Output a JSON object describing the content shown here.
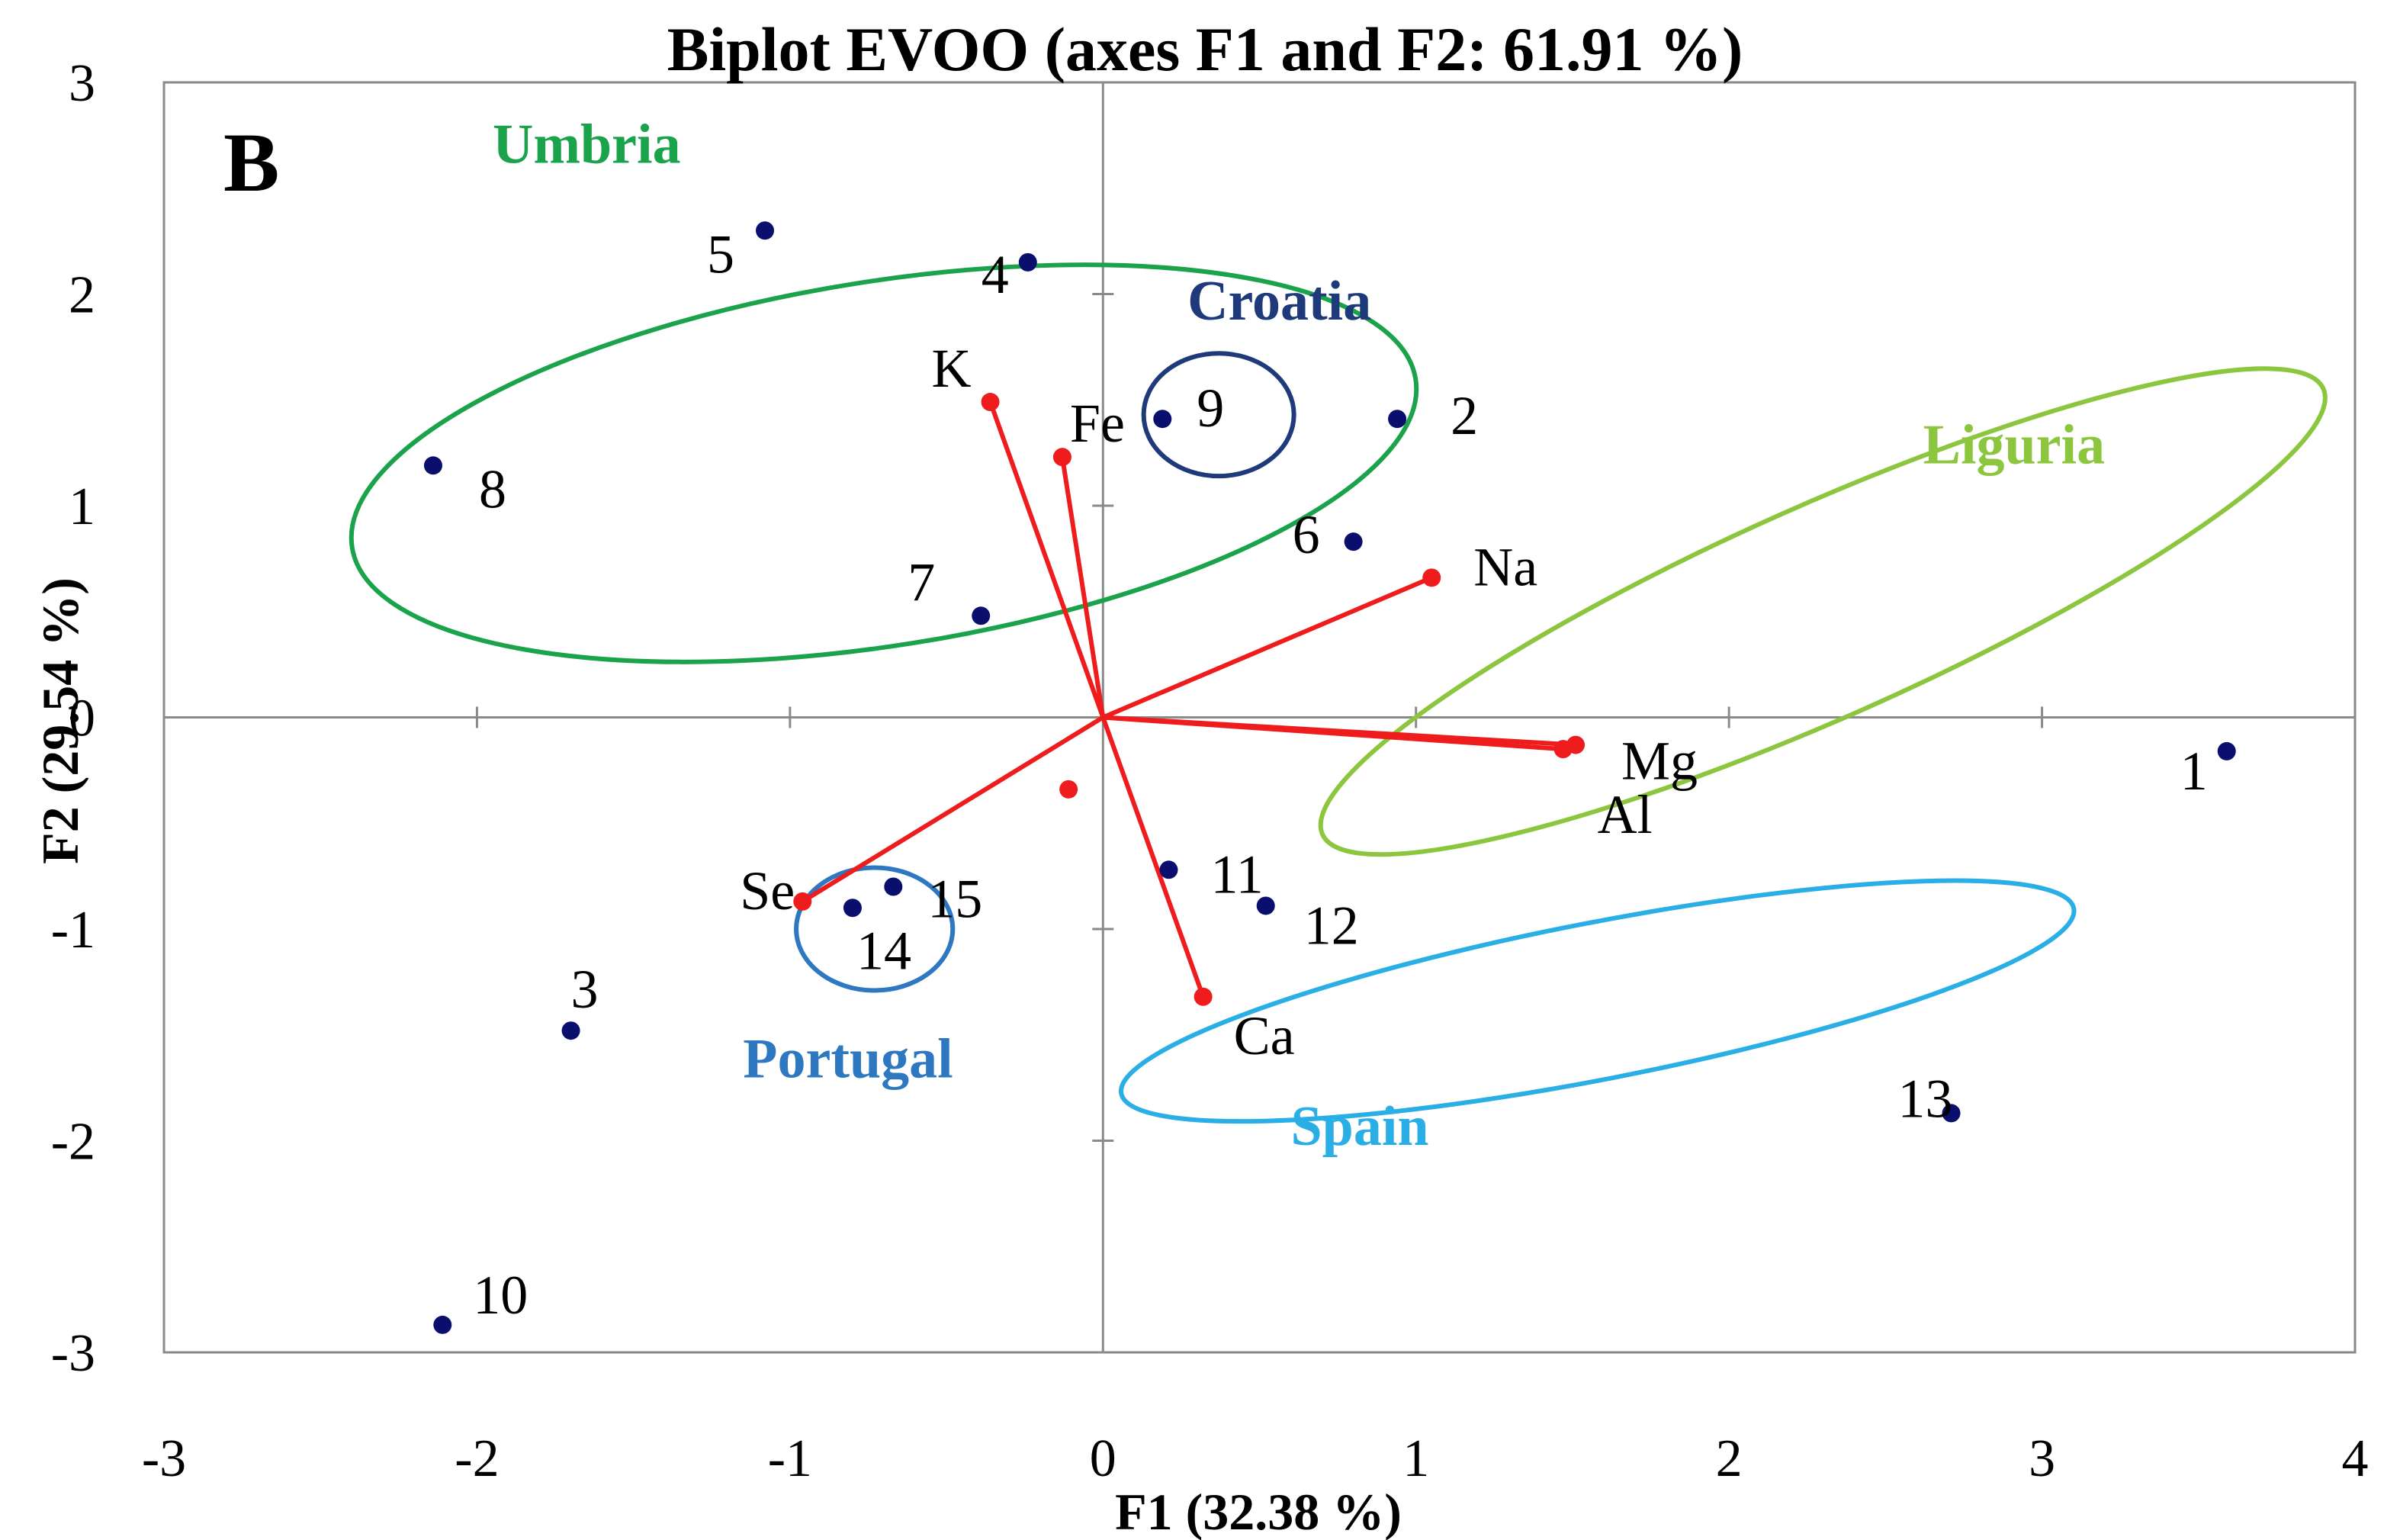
{
  "chart_data": {
    "type": "scatter",
    "title": "Biplot EVOO (axes F1 and F2: 61.91 %)",
    "panel_label": "B",
    "xlabel": "F1 (32.38 %)",
    "ylabel": "F2 (29.54 %)",
    "xlim": [
      -3,
      4
    ],
    "ylim": [
      -3,
      3
    ],
    "xticks": [
      "-3",
      "-2",
      "-1",
      "0",
      "1",
      "2",
      "3",
      "4"
    ],
    "yticks": [
      "3",
      "2",
      "1",
      "0",
      "-1",
      "-2",
      "-3"
    ],
    "observations": [
      {
        "label": "1",
        "x": 3.59,
        "y": -0.16
      },
      {
        "label": "2",
        "x": 0.94,
        "y": 1.41
      },
      {
        "label": "3",
        "x": -1.7,
        "y": -1.48
      },
      {
        "label": "4",
        "x": -0.24,
        "y": 2.15
      },
      {
        "label": "5",
        "x": -1.08,
        "y": 2.3
      },
      {
        "label": "6",
        "x": 0.8,
        "y": 0.83
      },
      {
        "label": "7",
        "x": -0.39,
        "y": 0.48
      },
      {
        "label": "8",
        "x": -2.14,
        "y": 1.19
      },
      {
        "label": "9",
        "x": 0.19,
        "y": 1.41
      },
      {
        "label": "10",
        "x": -2.11,
        "y": -2.87
      },
      {
        "label": "11",
        "x": 0.21,
        "y": -0.72
      },
      {
        "label": "12",
        "x": 0.52,
        "y": -0.89
      },
      {
        "label": "13",
        "x": 2.71,
        "y": -1.87
      },
      {
        "label": "14",
        "x": -0.8,
        "y": -0.9
      },
      {
        "label": "15",
        "x": -0.67,
        "y": -0.8
      }
    ],
    "variables": [
      {
        "label": "K",
        "x": -0.36,
        "y": 1.49
      },
      {
        "label": "Fe",
        "x": -0.13,
        "y": 1.23
      },
      {
        "label": "Na",
        "x": 1.05,
        "y": 0.66
      },
      {
        "label": "Mg",
        "x": 1.51,
        "y": -0.13
      },
      {
        "label": "Al",
        "x": 1.47,
        "y": -0.15
      },
      {
        "label": "Se",
        "x": -0.96,
        "y": -0.87
      },
      {
        "label": "Ca",
        "x": 0.32,
        "y": -1.32
      },
      {
        "label": "",
        "x": -0.11,
        "y": -0.34
      }
    ],
    "groups": [
      {
        "name": "Umbria",
        "color": "#1aa34a",
        "members": [
          "4",
          "5",
          "6",
          "7",
          "8"
        ]
      },
      {
        "name": "Croatia",
        "color": "#1f3a7a",
        "members": [
          "9"
        ]
      },
      {
        "name": "Liguria",
        "color": "#8cc63f",
        "members": [
          "1",
          "2"
        ]
      },
      {
        "name": "Portugal",
        "color": "#2e78c2",
        "members": [
          "14",
          "15"
        ]
      },
      {
        "name": "Spain",
        "color": "#29aee6",
        "members": [
          "11",
          "12",
          "13"
        ]
      }
    ],
    "colors": {
      "observation": "#0a0f6e",
      "variable": "#ee1c1c",
      "axis": "#8a8a8a"
    }
  }
}
